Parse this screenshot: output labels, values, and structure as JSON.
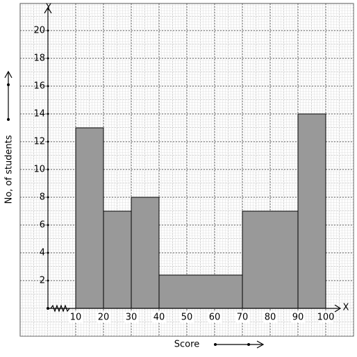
{
  "chart_data": {
    "type": "histogram",
    "x_axis_label": "Score",
    "y_axis_label": "No, of students",
    "x_axis_letter": "X",
    "y_axis_letter": "Y",
    "bins": [
      10,
      20,
      30,
      40,
      70,
      90,
      100
    ],
    "values": [
      13,
      7,
      8,
      2.4,
      7,
      14
    ],
    "color": "#999999",
    "xlim": [
      0,
      105
    ],
    "ylim": [
      0,
      21.5
    ],
    "xticks": [
      10,
      20,
      30,
      40,
      50,
      60,
      70,
      80,
      90,
      100
    ],
    "yticks": [
      2,
      4,
      6,
      8,
      10,
      12,
      14,
      16,
      18,
      20
    ],
    "grid": true
  }
}
